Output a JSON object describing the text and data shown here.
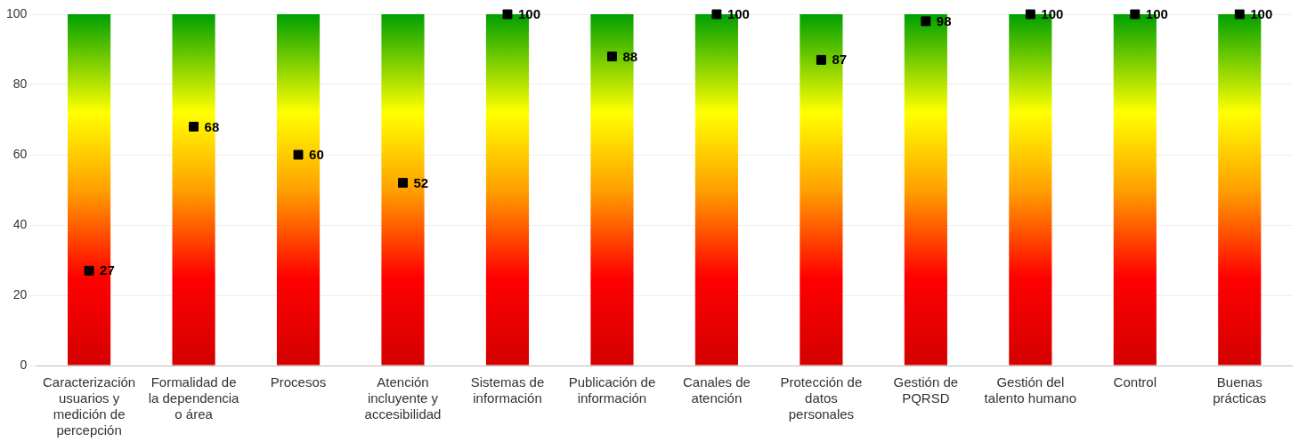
{
  "chart_data": {
    "type": "bar",
    "categories": [
      "Caracterización usuarios y medición de percepción",
      "Formalidad de la dependencia o área",
      "Procesos",
      "Atención incluyente y accesibilidad",
      "Sistemas de información",
      "Publicación de información",
      "Canales de atención",
      "Protección de datos personales",
      "Gestión de PQRSD",
      "Gestión del talento humano",
      "Control",
      "Buenas prácticas"
    ],
    "series": [
      {
        "color": "#ffff00",
        "values": [
          100,
          100,
          100,
          100,
          100,
          100,
          100,
          100,
          100,
          100,
          100,
          100
        ]
      },
      {
        "type": "scatter",
        "color": "#000000",
        "marker": "square",
        "values": [
          27,
          68,
          60,
          52,
          100,
          88,
          100,
          87,
          98,
          100,
          100,
          100
        ],
        "value_labels": [
          "27",
          "68",
          "60",
          "52",
          "100",
          "88",
          "100",
          "87",
          "98",
          "100",
          "100",
          "100"
        ]
      }
    ],
    "ylim": [
      0,
      100
    ],
    "yticks": [
      0,
      20,
      40,
      60,
      80,
      100
    ],
    "grid": "y",
    "legend": false
  }
}
